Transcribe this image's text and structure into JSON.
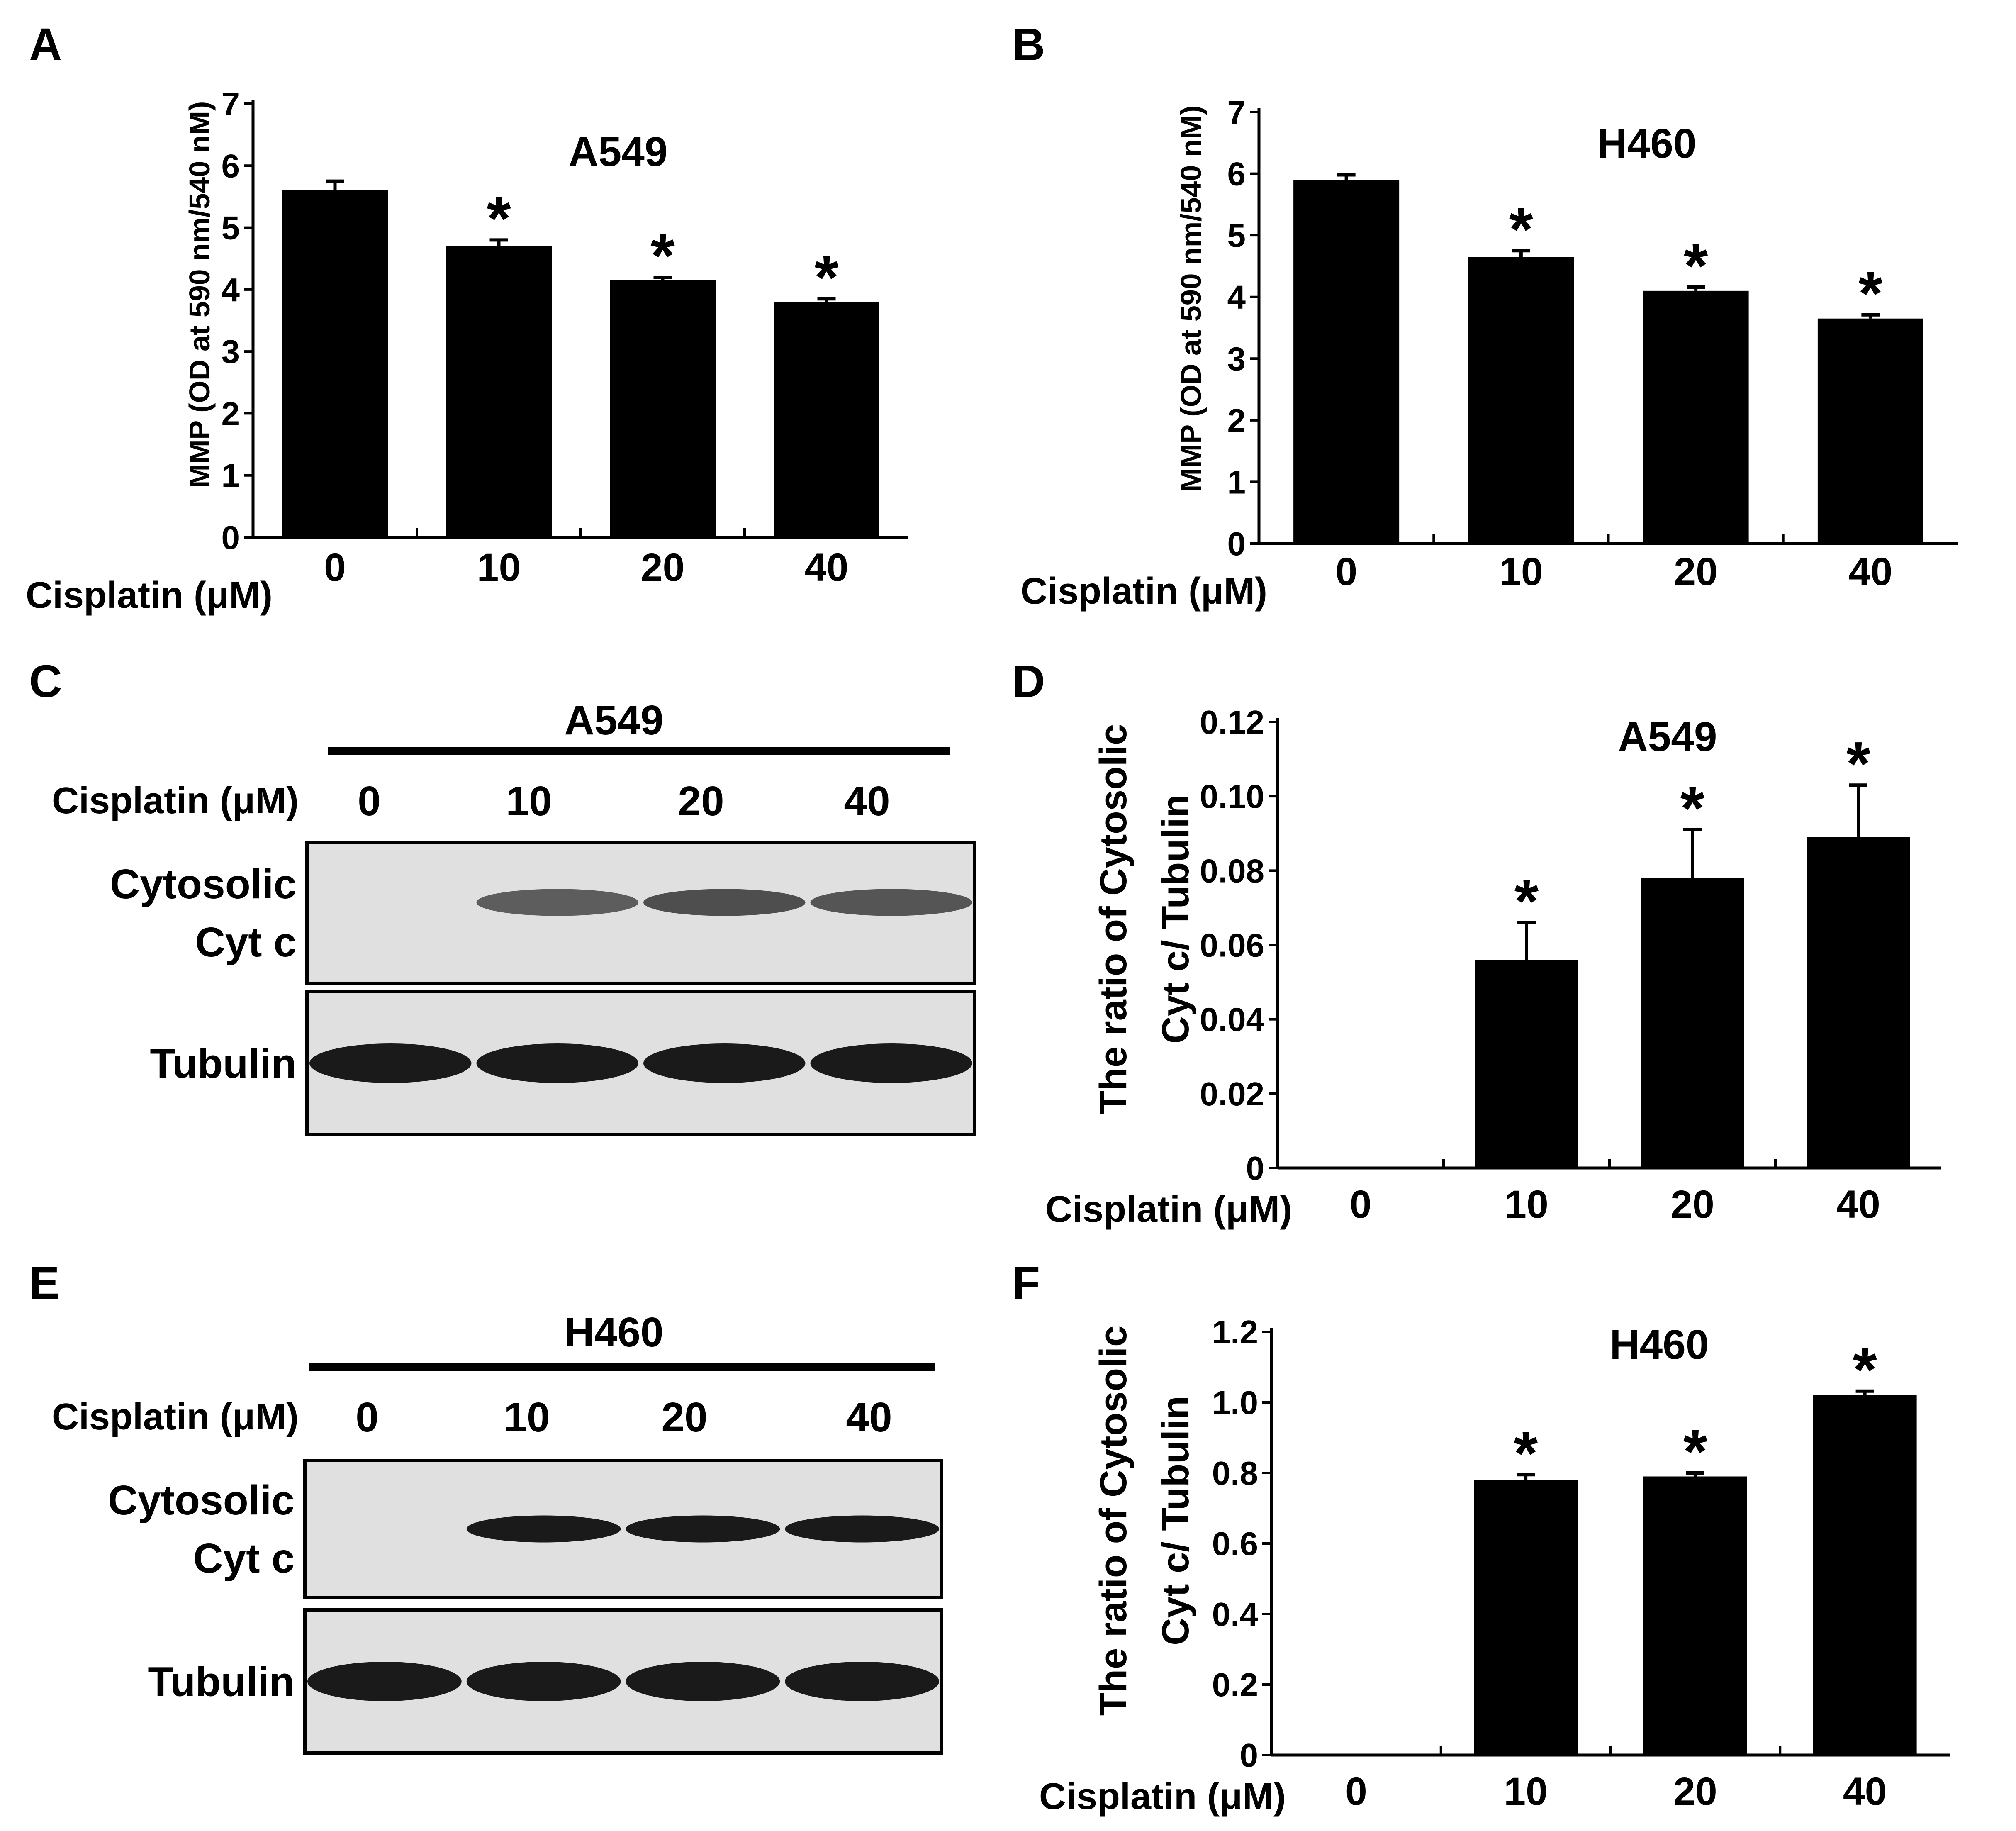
{
  "panel_letters": [
    "A",
    "B",
    "C",
    "D",
    "E",
    "F"
  ],
  "colors": {
    "bar": "#000000",
    "axis": "#000000",
    "blot_bg": "#e0e0e0",
    "band": "#1a1a1a"
  },
  "blots": [
    {
      "panel": "C",
      "cell_line": "A549",
      "treatment_label": "Cisplatin (μM)",
      "lanes": [
        "0",
        "10",
        "20",
        "40"
      ],
      "rows": [
        {
          "label_lines": [
            "Cytosolic",
            "Cyt c"
          ],
          "band_intensity": [
            0.0,
            0.55,
            0.65,
            0.6
          ]
        },
        {
          "label_lines": [
            "Tubulin"
          ],
          "band_intensity": [
            1.0,
            1.0,
            1.0,
            1.0
          ]
        }
      ]
    },
    {
      "panel": "E",
      "cell_line": "H460",
      "treatment_label": "Cisplatin (μM)",
      "lanes": [
        "0",
        "10",
        "20",
        "40"
      ],
      "rows": [
        {
          "label_lines": [
            "Cytosolic",
            "Cyt c"
          ],
          "band_intensity": [
            0.0,
            1.0,
            1.0,
            1.0
          ]
        },
        {
          "label_lines": [
            "Tubulin"
          ],
          "band_intensity": [
            1.0,
            1.0,
            1.0,
            1.0
          ]
        }
      ]
    }
  ],
  "chart_data": [
    {
      "panel": "A",
      "type": "bar",
      "title": "A549",
      "xlabel": "Cisplatin (μM)",
      "ylabel": "MMP (OD at 590 nm/540 nM)",
      "categories": [
        "0",
        "10",
        "20",
        "40"
      ],
      "values": [
        5.6,
        4.7,
        4.15,
        3.8
      ],
      "errors": [
        0.15,
        0.1,
        0.05,
        0.05
      ],
      "significance": [
        "",
        "*",
        "*",
        "*"
      ],
      "ylim": [
        0,
        7
      ],
      "yticks": [
        "0",
        "1",
        "2",
        "3",
        "4",
        "5",
        "6",
        "7"
      ]
    },
    {
      "panel": "B",
      "type": "bar",
      "title": "H460",
      "xlabel": "Cisplatin (μM)",
      "ylabel": "MMP (OD at 590 nm/540 nM)",
      "categories": [
        "0",
        "10",
        "20",
        "40"
      ],
      "values": [
        5.9,
        4.65,
        4.1,
        3.65
      ],
      "errors": [
        0.08,
        0.1,
        0.06,
        0.06
      ],
      "significance": [
        "",
        "*",
        "*",
        "*"
      ],
      "ylim": [
        0,
        7
      ],
      "yticks": [
        "0",
        "1",
        "2",
        "3",
        "4",
        "5",
        "6",
        "7"
      ]
    },
    {
      "panel": "D",
      "type": "bar",
      "title": "A549",
      "xlabel": "Cisplatin (μM)",
      "ylabel": [
        "The ratio of Cytosolic",
        "Cyt c/ Tubulin"
      ],
      "categories": [
        "0",
        "10",
        "20",
        "40"
      ],
      "values": [
        0,
        0.056,
        0.078,
        0.089
      ],
      "errors": [
        0,
        0.01,
        0.013,
        0.014
      ],
      "significance": [
        "",
        "*",
        "*",
        "*"
      ],
      "ylim": [
        0,
        0.12
      ],
      "yticks": [
        "0",
        "0.02",
        "0.04",
        "0.06",
        "0.08",
        "0.10",
        "0.12"
      ]
    },
    {
      "panel": "F",
      "type": "bar",
      "title": "H460",
      "xlabel": "Cisplatin (μM)",
      "ylabel": [
        "The ratio of Cytosolic",
        "Cyt c/ Tubulin"
      ],
      "categories": [
        "0",
        "10",
        "20",
        "40"
      ],
      "values": [
        0,
        0.78,
        0.79,
        1.02
      ],
      "errors": [
        0,
        0.015,
        0.01,
        0.012
      ],
      "significance": [
        "",
        "*",
        "*",
        "*"
      ],
      "ylim": [
        0,
        1.2
      ],
      "yticks": [
        "0",
        "0.2",
        "0.4",
        "0.6",
        "0.8",
        "1.0",
        "1.2"
      ]
    }
  ]
}
